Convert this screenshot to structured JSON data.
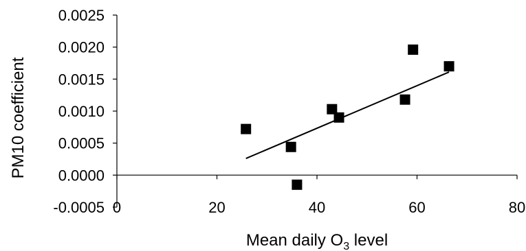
{
  "chart_data": {
    "type": "scatter",
    "title": "",
    "xlabel": "Mean daily O",
    "xlabel_sub": "3",
    "xlabel_suffix": " level",
    "ylabel": "PM10 coefficient",
    "xlim": [
      0,
      80
    ],
    "ylim": [
      -0.0005,
      0.0025
    ],
    "x_ticks": [
      0,
      20,
      40,
      60,
      80
    ],
    "y_ticks": [
      -0.0005,
      0.0,
      0.0005,
      0.001,
      0.0015,
      0.002,
      0.0025
    ],
    "x_tick_labels": [
      "0",
      "20",
      "40",
      "60",
      "80"
    ],
    "y_tick_labels": [
      "-0.0005",
      "0.0000",
      "0.0005",
      "0.0010",
      "0.0015",
      "0.0020",
      "0.0025"
    ],
    "grid": false,
    "legend": "none",
    "points": [
      {
        "x": 25.8,
        "y": 0.00072
      },
      {
        "x": 34.8,
        "y": 0.00044
      },
      {
        "x": 36.0,
        "y": -0.00015
      },
      {
        "x": 43.0,
        "y": 0.00103
      },
      {
        "x": 44.4,
        "y": 0.0009
      },
      {
        "x": 57.6,
        "y": 0.00118
      },
      {
        "x": 59.2,
        "y": 0.00196
      },
      {
        "x": 66.4,
        "y": 0.0017
      }
    ],
    "trendline": {
      "x": [
        25.8,
        66.4
      ],
      "y": [
        0.00026,
        0.00161
      ]
    },
    "marker_color": "#000000",
    "line_color": "#000000"
  }
}
